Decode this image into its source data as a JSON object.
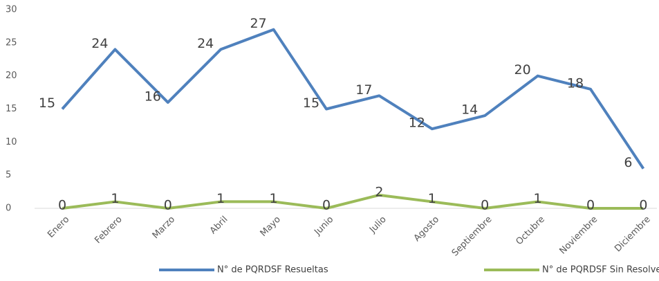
{
  "chart_data": {
    "type": "line",
    "categories": [
      "Enero",
      "Febrero",
      "Marzo",
      "Abril",
      "Mayo",
      "Junio",
      "Julio",
      "Agosto",
      "Septiembre",
      "Octubre",
      "Noviembre",
      "Diciembre"
    ],
    "series": [
      {
        "name": "N° de PQRDSF Resueltas",
        "color": "#4f81bd",
        "values": [
          15,
          24,
          16,
          24,
          27,
          15,
          17,
          12,
          14,
          20,
          18,
          6
        ]
      },
      {
        "name": "N° de PQRDSF Sin Resolver",
        "color": "#9bbb59",
        "values": [
          0,
          1,
          0,
          1,
          1,
          0,
          2,
          1,
          0,
          1,
          0,
          0
        ]
      }
    ],
    "ylim": [
      0,
      30
    ],
    "yticks": [
      0,
      5,
      10,
      15,
      20,
      25,
      30
    ],
    "grid": false,
    "legend": "bottom"
  }
}
